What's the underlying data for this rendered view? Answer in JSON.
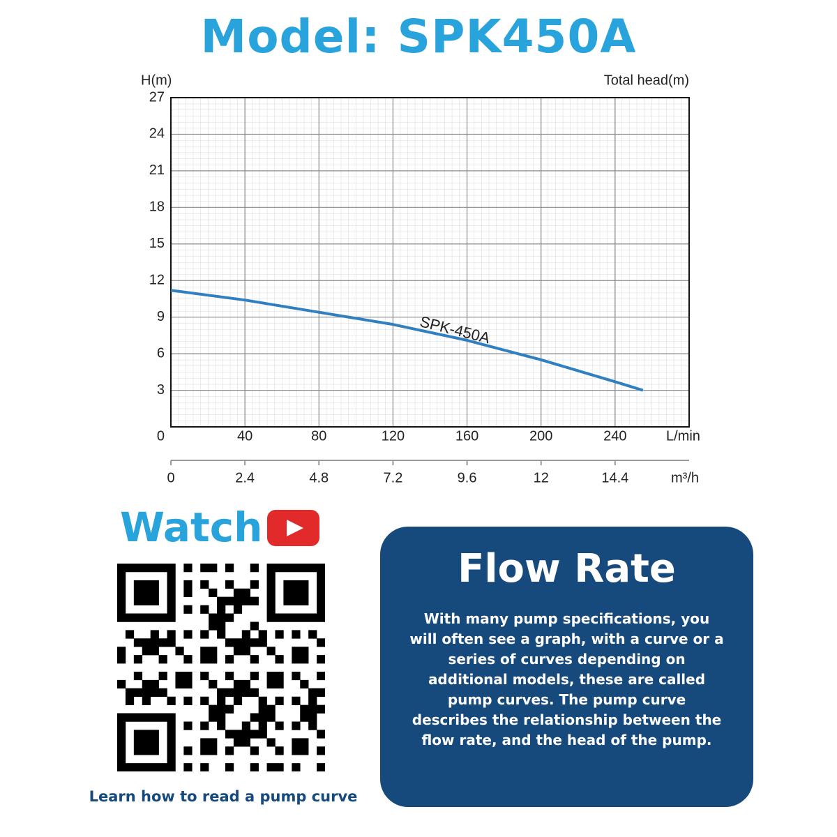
{
  "header": {
    "title": "Model: SPK450A"
  },
  "chart_data": {
    "type": "line",
    "y_label": "H(m)",
    "title": "Total head(m)",
    "x_label": "L/min",
    "x2_label": "m³/h",
    "x": [
      0,
      40,
      80,
      120,
      160,
      200,
      240,
      255
    ],
    "series": [
      {
        "name": "SPK-450A",
        "color": "#2f7fc1",
        "values": [
          11.2,
          10.4,
          9.4,
          8.4,
          7.1,
          5.5,
          3.7,
          3.0
        ]
      }
    ],
    "xlim": [
      0,
      280
    ],
    "xticks": [
      40,
      80,
      120,
      160,
      200,
      240
    ],
    "ylim": [
      0,
      27
    ],
    "yticks": [
      0,
      3,
      6,
      9,
      12,
      15,
      18,
      21,
      24,
      27
    ],
    "x2lim": [
      0,
      16.8
    ],
    "x2ticks": [
      0,
      2.4,
      4.8,
      7.2,
      9.6,
      12,
      14.4
    ],
    "grid": true
  },
  "watch": {
    "label": "Watch",
    "caption": "Learn how to read a pump curve"
  },
  "info": {
    "title": "Flow Rate",
    "text": "With many pump specifications, you will often see a graph, with a curve or a series of curves depending on additional models, these are called pump curves. The pump curve describes the relationship between the flow rate, and the head of the pump."
  }
}
